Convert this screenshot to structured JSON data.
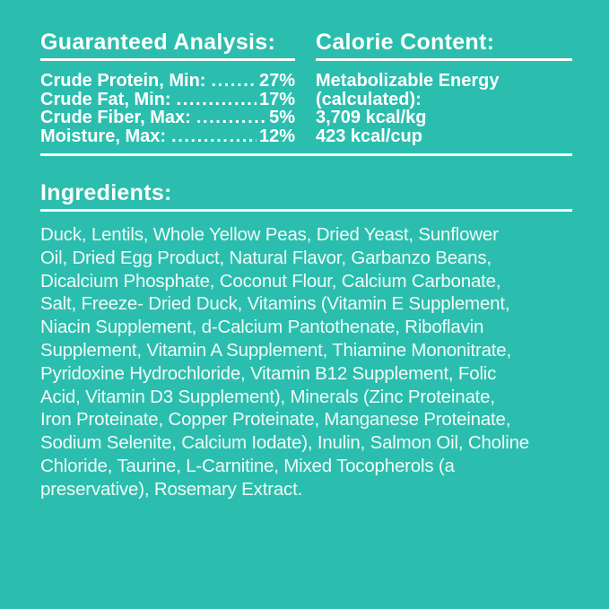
{
  "label": {
    "background_color": "#2BBEAE",
    "text_color": "#FFFFFF",
    "body_text_color": "#F0FBF8"
  },
  "guaranteed_analysis": {
    "title": "Guaranteed Analysis:",
    "leader_dots": "................................................................",
    "rows": [
      {
        "label": "Crude Protein, Min:",
        "value": "27%"
      },
      {
        "label": "Crude Fat, Min:",
        "value": "17%"
      },
      {
        "label": "Crude Fiber, Max:",
        "value": "5%"
      },
      {
        "label": "Moisture, Max:",
        "value": "12%"
      }
    ]
  },
  "calorie_content": {
    "title": "Calorie Content:",
    "lines": [
      "Metabolizable Energy",
      "(calculated):",
      "3,709 kcal/kg",
      "423 kcal/cup"
    ]
  },
  "ingredients": {
    "title": "Ingredients:",
    "lines": [
      "Duck, Lentils, Whole Yellow Peas, Dried Yeast, Sunflower",
      "Oil, Dried Egg Product, Natural Flavor, Garbanzo Beans,",
      "Dicalcium Phosphate, Coconut Flour, Calcium Carbonate,",
      "Salt, Freeze- Dried Duck, Vitamins (Vitamin E Supplement,",
      "Niacin Supplement, d-Calcium Pantothenate, Riboflavin",
      "Supplement, Vitamin A Supplement, Thiamine Mononitrate,",
      "Pyridoxine Hydrochloride, Vitamin B12 Supplement, Folic",
      "Acid, Vitamin D3 Supplement), Minerals (Zinc Proteinate,",
      "Iron Proteinate, Copper Proteinate, Manganese Proteinate,",
      "Sodium Selenite, Calcium Iodate), Inulin, Salmon Oil, Choline",
      "Chloride, Taurine, L-Carnitine, Mixed Tocopherols (a",
      "preservative), Rosemary Extract."
    ]
  }
}
